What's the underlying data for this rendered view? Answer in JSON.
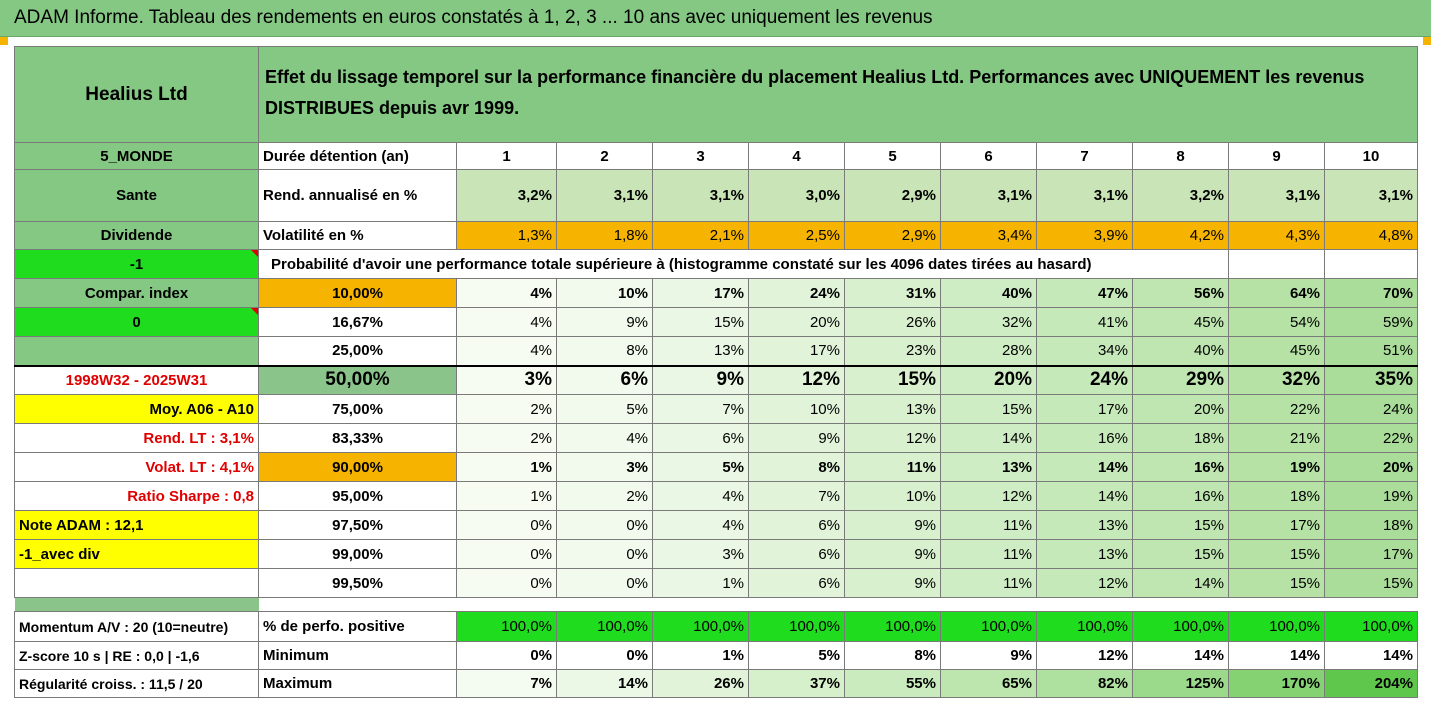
{
  "title": "ADAM Informe. Tableau des rendements en euros constatés à 1, 2, 3 ... 10 ans avec uniquement les revenus",
  "header": {
    "name": "Healius Ltd",
    "description": "Effet du lissage temporel sur la performance financière du placement Healius Ltd. Performances avec UNIQUEMENT les revenus DISTRIBUES depuis avr 1999."
  },
  "sidebar": {
    "region": "5_MONDE",
    "sector": "Sante",
    "type": "Dividende",
    "val_minus1": "-1",
    "compar_index": "Compar. index",
    "val_zero": "0",
    "period": "1998W32 - 2025W31",
    "moy": "Moy. A06 - A10",
    "rend_lt": "Rend. LT :   3,1%",
    "volat_lt": "Volat. LT :   4,1%",
    "ratio_sharpe": "Ratio Sharpe :   0,8",
    "note_adam": "Note ADAM : 12,1",
    "avec_div": "-1_avec div"
  },
  "durations": {
    "label": "Durée détention (an)",
    "years": [
      "1",
      "2",
      "3",
      "4",
      "5",
      "6",
      "7",
      "8",
      "9",
      "10"
    ]
  },
  "rend": {
    "label": "Rend. annualisé en %",
    "values": [
      "3,2%",
      "3,1%",
      "3,1%",
      "3,0%",
      "2,9%",
      "3,1%",
      "3,1%",
      "3,2%",
      "3,1%",
      "3,1%"
    ]
  },
  "volat": {
    "label": "Volatilité en %",
    "values": [
      "1,3%",
      "1,8%",
      "2,1%",
      "2,5%",
      "2,9%",
      "3,4%",
      "3,9%",
      "4,2%",
      "4,3%",
      "4,8%"
    ]
  },
  "prob_header": "Probabilité d'avoir une performance totale supérieure à (histogramme constaté sur les 4096 dates tirées au hasard)",
  "prob_rows": [
    {
      "pct": "10,00%",
      "values": [
        "4%",
        "10%",
        "17%",
        "24%",
        "31%",
        "40%",
        "47%",
        "56%",
        "64%",
        "70%"
      ]
    },
    {
      "pct": "16,67%",
      "values": [
        "4%",
        "9%",
        "15%",
        "20%",
        "26%",
        "32%",
        "41%",
        "45%",
        "54%",
        "59%"
      ]
    },
    {
      "pct": "25,00%",
      "values": [
        "4%",
        "8%",
        "13%",
        "17%",
        "23%",
        "28%",
        "34%",
        "40%",
        "45%",
        "51%"
      ]
    },
    {
      "pct": "50,00%",
      "values": [
        "3%",
        "6%",
        "9%",
        "12%",
        "15%",
        "20%",
        "24%",
        "29%",
        "32%",
        "35%"
      ]
    },
    {
      "pct": "75,00%",
      "values": [
        "2%",
        "5%",
        "7%",
        "10%",
        "13%",
        "15%",
        "17%",
        "20%",
        "22%",
        "24%"
      ]
    },
    {
      "pct": "83,33%",
      "values": [
        "2%",
        "4%",
        "6%",
        "9%",
        "12%",
        "14%",
        "16%",
        "18%",
        "21%",
        "22%"
      ]
    },
    {
      "pct": "90,00%",
      "values": [
        "1%",
        "3%",
        "5%",
        "8%",
        "11%",
        "13%",
        "14%",
        "16%",
        "19%",
        "20%"
      ]
    },
    {
      "pct": "95,00%",
      "values": [
        "1%",
        "2%",
        "4%",
        "7%",
        "10%",
        "12%",
        "14%",
        "16%",
        "18%",
        "19%"
      ]
    },
    {
      "pct": "97,50%",
      "values": [
        "0%",
        "0%",
        "4%",
        "6%",
        "9%",
        "11%",
        "13%",
        "15%",
        "17%",
        "18%"
      ]
    },
    {
      "pct": "99,00%",
      "values": [
        "0%",
        "0%",
        "3%",
        "6%",
        "9%",
        "11%",
        "13%",
        "15%",
        "15%",
        "17%"
      ]
    },
    {
      "pct": "99,50%",
      "values": [
        "0%",
        "0%",
        "1%",
        "6%",
        "9%",
        "11%",
        "12%",
        "14%",
        "15%",
        "15%"
      ]
    }
  ],
  "footer": {
    "momentum": "Momentum A/V : 20 (10=neutre)",
    "zscore": "Z-score 10 s  |  RE : 0,0  |  -1,6",
    "regularite": "Régularité croiss. : 11,5 / 20",
    "positive_label": "% de perfo. positive",
    "positive_values": [
      "100,0%",
      "100,0%",
      "100,0%",
      "100,0%",
      "100,0%",
      "100,0%",
      "100,0%",
      "100,0%",
      "100,0%",
      "100,0%"
    ],
    "min_label": "Minimum",
    "min_values": [
      "0%",
      "0%",
      "1%",
      "5%",
      "8%",
      "9%",
      "12%",
      "14%",
      "14%",
      "14%"
    ],
    "max_label": "Maximum",
    "max_values": [
      "7%",
      "14%",
      "26%",
      "37%",
      "55%",
      "65%",
      "82%",
      "125%",
      "170%",
      "204%"
    ]
  },
  "colors": {
    "green_header": "#84c884",
    "light_green": "#c9e4b7",
    "orange": "#f6b400",
    "bright_green": "#1fdc1f",
    "yellow": "#ffff00",
    "red_text": "#e00000"
  }
}
